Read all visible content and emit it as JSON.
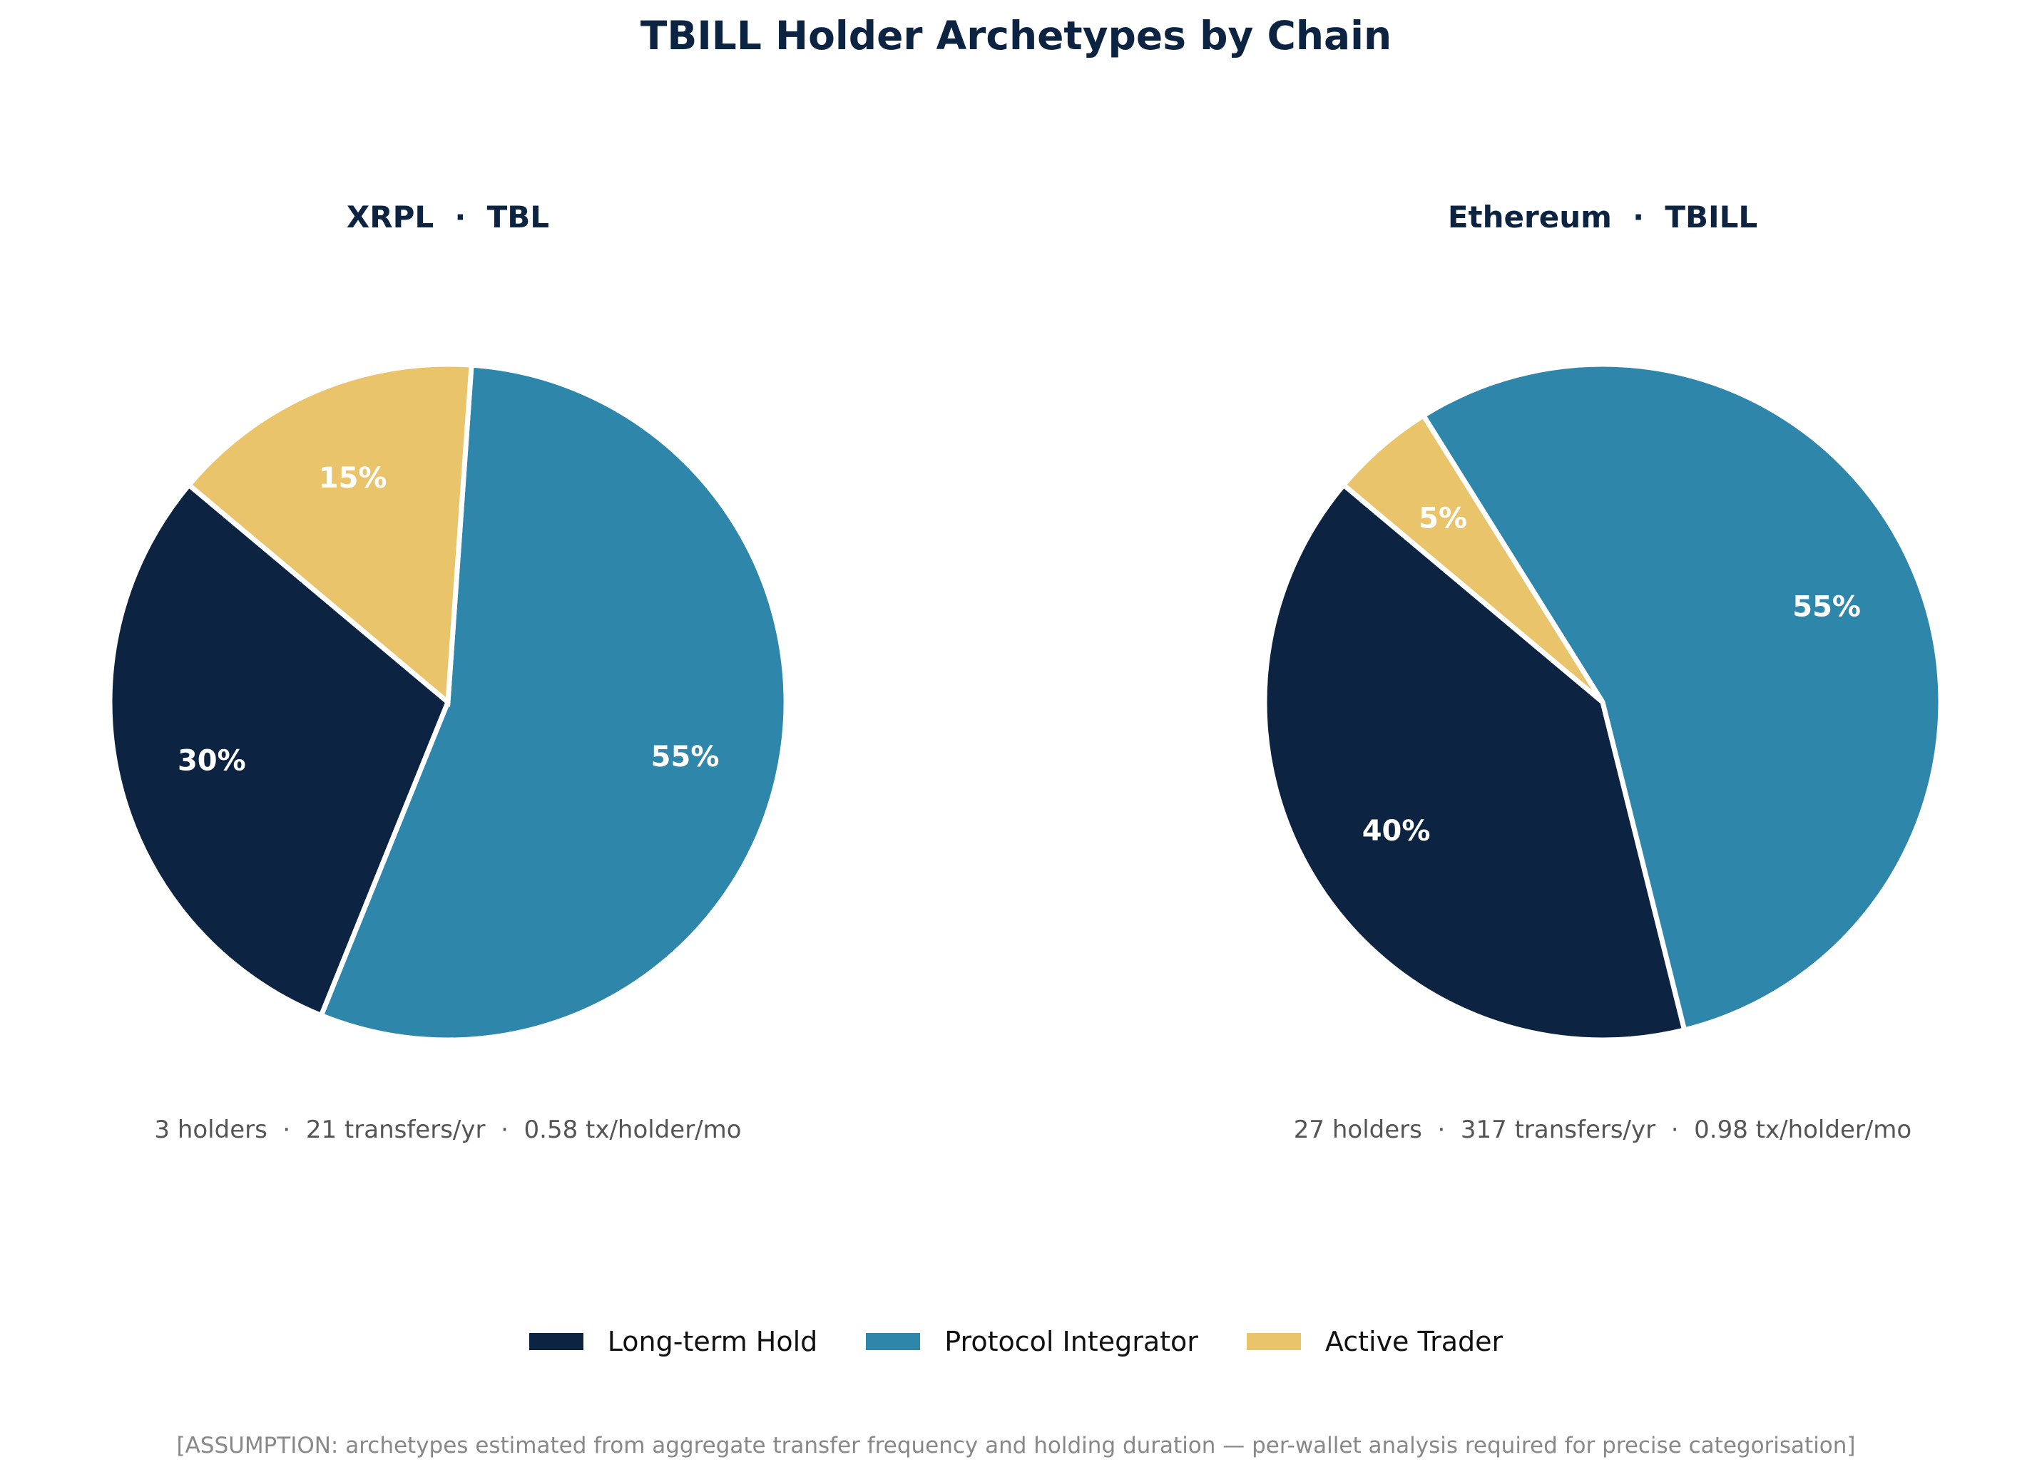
{
  "title": "TBILL Holder Archetypes by Chain",
  "colors": {
    "long_term_hold": "#0C2342",
    "protocol_integrator": "#2E86AB",
    "active_trader": "#E9C46A"
  },
  "charts": [
    {
      "title": "XRPL  ·  TBL",
      "stats": "3 holders  ·  21 transfers/yr  ·  0.58 tx/holder/mo"
    },
    {
      "title": "Ethereum  ·  TBILL",
      "stats": "27 holders  ·  317 transfers/yr  ·  0.98 tx/holder/mo"
    }
  ],
  "legend": {
    "items": [
      {
        "label": "Long-term Hold",
        "color": "#0C2342"
      },
      {
        "label": "Protocol Integrator",
        "color": "#2E86AB"
      },
      {
        "label": "Active Trader",
        "color": "#E9C46A"
      }
    ]
  },
  "footnote": "[ASSUMPTION: archetypes estimated from aggregate transfer frequency and holding duration — per-wallet analysis required for precise categorisation]",
  "chart_data": [
    {
      "type": "pie",
      "title": "XRPL  ·  TBL",
      "categories": [
        "Long-term Hold",
        "Protocol Integrator",
        "Active Trader"
      ],
      "values": [
        30,
        55,
        15
      ],
      "labels": [
        "30%",
        "55%",
        "15%"
      ],
      "colors": [
        "#0C2342",
        "#2E86AB",
        "#E9C46A"
      ],
      "start_angle": 140,
      "annotation": "3 holders  ·  21 transfers/yr  ·  0.58 tx/holder/mo",
      "legend_position": "bottom"
    },
    {
      "type": "pie",
      "title": "Ethereum  ·  TBILL",
      "categories": [
        "Long-term Hold",
        "Protocol Integrator",
        "Active Trader"
      ],
      "values": [
        40,
        55,
        5
      ],
      "labels": [
        "40%",
        "55%",
        "5%"
      ],
      "colors": [
        "#0C2342",
        "#2E86AB",
        "#E9C46A"
      ],
      "start_angle": 140,
      "annotation": "27 holders  ·  317 transfers/yr  ·  0.98 tx/holder/mo",
      "legend_position": "bottom"
    }
  ]
}
